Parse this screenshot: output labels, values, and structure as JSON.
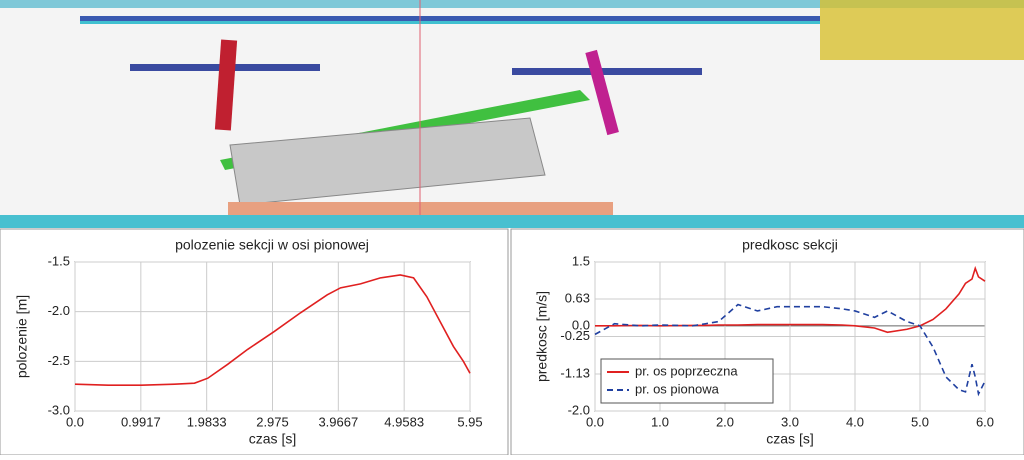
{
  "chart_data": [
    {
      "type": "line",
      "title": "polozenie sekcji w osi pionowej",
      "x_label": "czas [s]",
      "y_label": "polozenie [m]",
      "x": [
        0,
        0.5,
        1.0,
        1.5,
        1.8,
        2.0,
        2.3,
        2.6,
        3.0,
        3.4,
        3.8,
        4.0,
        4.3,
        4.6,
        4.9,
        5.1,
        5.3,
        5.5,
        5.7,
        5.85,
        5.95
      ],
      "values": [
        -2.73,
        -2.74,
        -2.74,
        -2.73,
        -2.72,
        -2.67,
        -2.53,
        -2.38,
        -2.2,
        -2.01,
        -1.83,
        -1.76,
        -1.72,
        -1.66,
        -1.63,
        -1.66,
        -1.85,
        -2.1,
        -2.35,
        -2.5,
        -2.62
      ],
      "color": "#e02020",
      "xlim": [
        0,
        5.95
      ],
      "ylim": [
        -3.0,
        -1.5
      ],
      "xticks": [
        {
          "value": 0,
          "label": "0.0"
        },
        0.9917,
        1.9833,
        2.975,
        3.9667,
        4.9583,
        5.95
      ],
      "yticks": [
        {
          "value": -1.5,
          "label": "-1.5"
        },
        {
          "value": -2.0,
          "label": "-2.0"
        },
        {
          "value": -2.5,
          "label": "-2.5"
        },
        {
          "value": -3.0,
          "label": "-3.0"
        }
      ],
      "grid": true
    },
    {
      "type": "line",
      "title": "predkosc sekcji",
      "x_label": "czas [s]",
      "y_label": "predkosc [m/s]",
      "x": [
        0,
        0.3,
        0.7,
        1.0,
        1.5,
        1.7,
        1.9,
        2.2,
        2.5,
        2.8,
        3.2,
        3.5,
        3.8,
        4.0,
        4.3,
        4.5,
        4.8,
        5.0,
        5.2,
        5.4,
        5.6,
        5.7,
        5.8,
        5.85,
        5.9,
        6.0
      ],
      "series": [
        {
          "name": "pr. os poprzeczna",
          "color": "#e02020",
          "line_style": "solid",
          "values": [
            0.0,
            0.0,
            0.01,
            0.0,
            0.01,
            0.01,
            0.02,
            0.02,
            0.03,
            0.03,
            0.03,
            0.03,
            0.02,
            0.0,
            -0.05,
            -0.15,
            -0.08,
            0.0,
            0.15,
            0.4,
            0.75,
            1.0,
            1.1,
            1.35,
            1.15,
            1.05
          ]
        },
        {
          "name": "pr. os pionowa",
          "color": "#2040a0",
          "line_style": "dashed",
          "values": [
            -0.2,
            0.05,
            0.0,
            0.02,
            0.0,
            0.05,
            0.1,
            0.5,
            0.35,
            0.45,
            0.45,
            0.45,
            0.4,
            0.35,
            0.2,
            0.35,
            0.1,
            0.0,
            -0.5,
            -1.2,
            -1.5,
            -1.55,
            -0.9,
            -1.2,
            -1.6,
            -1.3
          ]
        }
      ],
      "xlim": [
        0,
        6.0
      ],
      "ylim": [
        -2.0,
        1.5
      ],
      "xticks": [
        {
          "value": 0,
          "label": "0.0"
        },
        {
          "value": 1,
          "label": "1.0"
        },
        {
          "value": 2,
          "label": "2.0"
        },
        {
          "value": 3,
          "label": "3.0"
        },
        {
          "value": 4,
          "label": "4.0"
        },
        {
          "value": 5,
          "label": "5.0"
        },
        {
          "value": 6,
          "label": "6.0"
        }
      ],
      "yticks": [
        1.5,
        0.63,
        {
          "value": 0,
          "label": "0.0"
        },
        -0.25,
        -1.13,
        {
          "value": -2.0,
          "label": "-2.0"
        }
      ],
      "grid": true,
      "legend": "lower-left"
    }
  ]
}
